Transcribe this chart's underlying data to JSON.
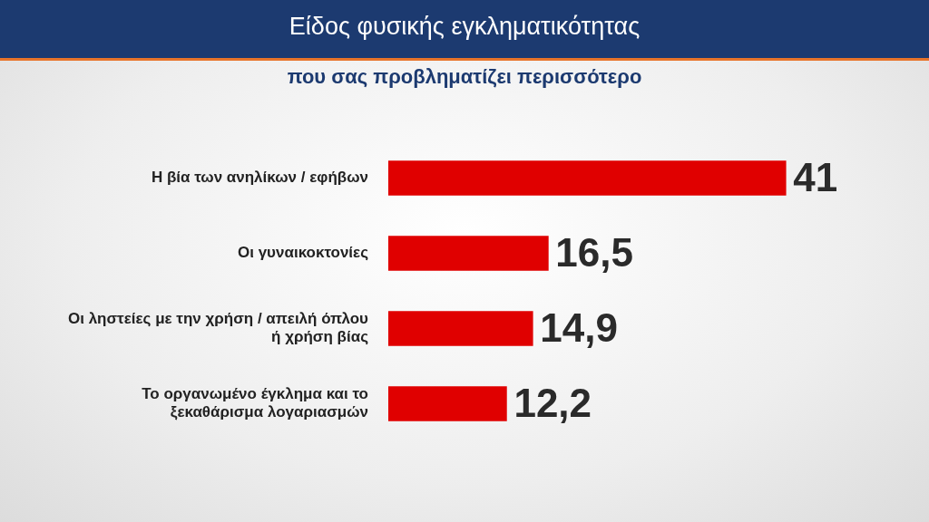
{
  "chart_data": {
    "type": "bar",
    "orientation": "horizontal",
    "title": "Είδος φυσικής εγκληματικότητας",
    "subtitle": "που σας προβληματίζει περισσότερο",
    "categories": [
      "Η βία των ανηλίκων / εφήβων",
      "Οι γυναικοκτονίες",
      "Οι ληστείες με την χρήση / απειλή όπλου ή χρήση βίας",
      "Το οργανωμένο έγκλημα και το ξεκαθάρισμα λογαριασμών"
    ],
    "values": [
      41,
      16.5,
      14.9,
      12.2
    ],
    "value_labels": [
      "41",
      "16,5",
      "14,9",
      "12,2"
    ],
    "color": "#e00000"
  }
}
